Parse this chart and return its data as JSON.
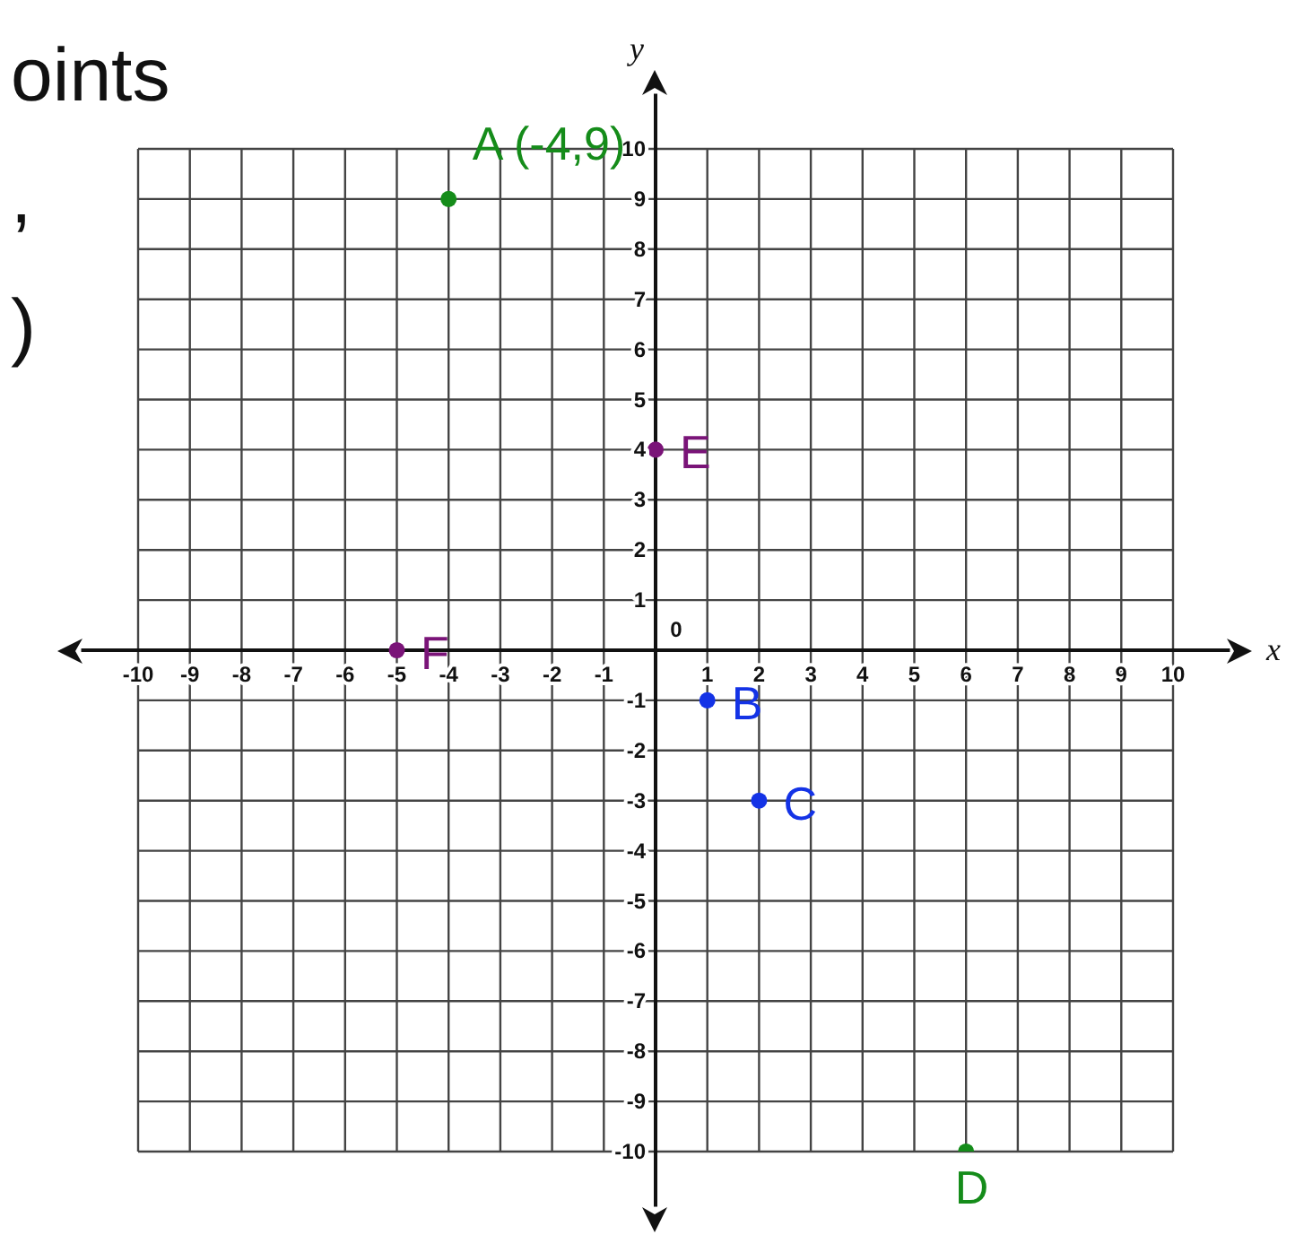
{
  "chart_data": {
    "type": "scatter",
    "xlabel": "x",
    "ylabel": "y",
    "annotations": [
      "oints",
      ",",
      ")",
      {
        "text": "A (-4,9)",
        "x": -4,
        "y": 9
      },
      {
        "text": "B",
        "x": 1,
        "y": -1
      },
      {
        "text": "C",
        "x": 2,
        "y": -3
      },
      {
        "text": "D",
        "x": 6,
        "y": -10
      },
      {
        "text": "E",
        "x": 0,
        "y": 4
      },
      {
        "text": "F",
        "x": -5,
        "y": 0
      },
      "0"
    ],
    "xlim": [
      -10,
      10
    ],
    "ylim": [
      -10,
      10
    ],
    "xticks": [
      -10,
      -9,
      -8,
      -7,
      -6,
      -5,
      -4,
      -3,
      -2,
      -1,
      1,
      2,
      3,
      4,
      5,
      6,
      7,
      8,
      9,
      10
    ],
    "yticks": [
      -10,
      -9,
      -8,
      -7,
      -6,
      -5,
      -4,
      -3,
      -2,
      -1,
      1,
      2,
      3,
      4,
      5,
      6,
      7,
      8,
      9,
      10
    ],
    "grid": true,
    "legend": false,
    "marker": "circle",
    "series": [
      {
        "color": "#158c1a",
        "x": [
          -4,
          6
        ],
        "values": [
          9,
          -10
        ]
      },
      {
        "color": "#1433e6",
        "x": [
          1,
          2
        ],
        "values": [
          -1,
          -3
        ]
      },
      {
        "color": "#7a1478",
        "x": [
          0,
          -5
        ],
        "values": [
          4,
          0
        ]
      }
    ]
  }
}
